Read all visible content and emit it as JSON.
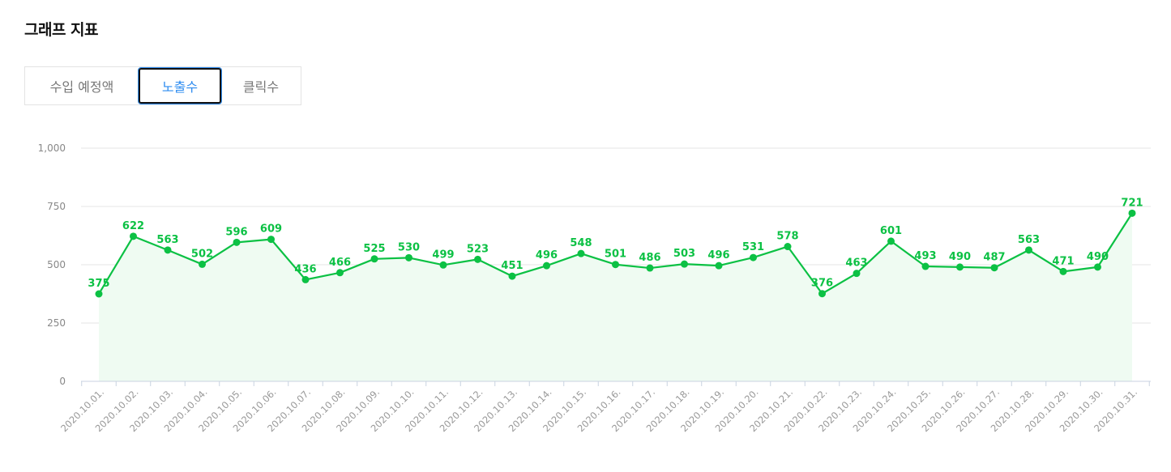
{
  "header": {
    "title": "그래프 지표"
  },
  "tabs": [
    {
      "label": "수입 예정액",
      "active": false
    },
    {
      "label": "노출수",
      "active": true
    },
    {
      "label": "클릭수",
      "active": false
    }
  ],
  "colors": {
    "series": "#0cc144",
    "fill": "#effbf2",
    "grid": "#e6e6e6",
    "active_tab": "#2e8cf0"
  },
  "chart_data": {
    "type": "area",
    "y_ticks": [
      "0",
      "250",
      "500",
      "750",
      "1,000"
    ],
    "ylim": [
      0,
      1000
    ],
    "grid": true,
    "categories": [
      "2020.10.01.",
      "2020.10.02.",
      "2020.10.03.",
      "2020.10.04.",
      "2020.10.05.",
      "2020.10.06.",
      "2020.10.07.",
      "2020.10.08.",
      "2020.10.09.",
      "2020.10.10.",
      "2020.10.11.",
      "2020.10.12.",
      "2020.10.13.",
      "2020.10.14.",
      "2020.10.15.",
      "2020.10.16.",
      "2020.10.17.",
      "2020.10.18.",
      "2020.10.19.",
      "2020.10.20.",
      "2020.10.21.",
      "2020.10.22.",
      "2020.10.23.",
      "2020.10.24.",
      "2020.10.25.",
      "2020.10.26.",
      "2020.10.27.",
      "2020.10.28.",
      "2020.10.29.",
      "2020.10.30.",
      "2020.10.31."
    ],
    "values": [
      375,
      622,
      563,
      502,
      596,
      609,
      436,
      466,
      525,
      530,
      499,
      523,
      451,
      496,
      548,
      501,
      486,
      503,
      496,
      531,
      578,
      376,
      463,
      601,
      493,
      490,
      487,
      563,
      471,
      490,
      721
    ]
  }
}
